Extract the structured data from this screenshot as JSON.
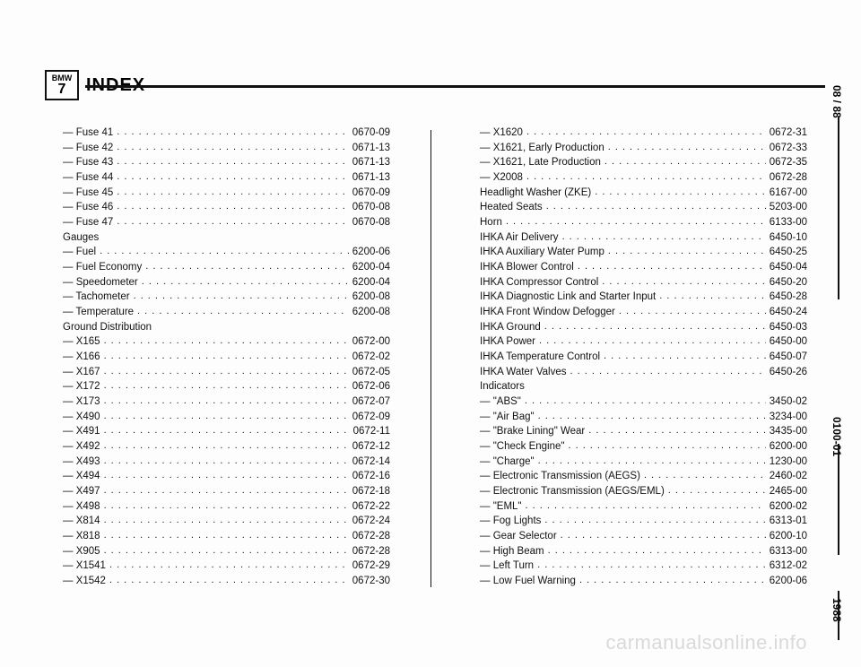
{
  "logo": {
    "brand": "BMW",
    "series": "7"
  },
  "title": "INDEX",
  "side": {
    "top": "08 / 88",
    "mid": "0100-01",
    "bot": "1988"
  },
  "watermark": "carmanualsonline.info",
  "left_col": [
    {
      "t": "e",
      "label": "—  Fuse 41",
      "num": "0670-09"
    },
    {
      "t": "e",
      "label": "—  Fuse 42",
      "num": "0671-13"
    },
    {
      "t": "e",
      "label": "—  Fuse 43",
      "num": "0671-13"
    },
    {
      "t": "e",
      "label": "—  Fuse 44",
      "num": "0671-13"
    },
    {
      "t": "e",
      "label": "—  Fuse 45",
      "num": "0670-09"
    },
    {
      "t": "e",
      "label": "—  Fuse 46",
      "num": "0670-08"
    },
    {
      "t": "e",
      "label": "—  Fuse 47",
      "num": "0670-08"
    },
    {
      "t": "h",
      "label": "Gauges"
    },
    {
      "t": "e",
      "label": "—  Fuel",
      "num": "6200-06"
    },
    {
      "t": "e",
      "label": "—  Fuel Economy",
      "num": "6200-04"
    },
    {
      "t": "e",
      "label": "—  Speedometer",
      "num": "6200-04"
    },
    {
      "t": "e",
      "label": "—  Tachometer",
      "num": "6200-08"
    },
    {
      "t": "e",
      "label": "—  Temperature",
      "num": "6200-08"
    },
    {
      "t": "h",
      "label": "Ground Distribution"
    },
    {
      "t": "e",
      "label": "—  X165",
      "num": "0672-00"
    },
    {
      "t": "e",
      "label": "—  X166",
      "num": "0672-02"
    },
    {
      "t": "e",
      "label": "—  X167",
      "num": "0672-05"
    },
    {
      "t": "e",
      "label": "—  X172",
      "num": "0672-06"
    },
    {
      "t": "e",
      "label": "—  X173",
      "num": "0672-07"
    },
    {
      "t": "e",
      "label": "—  X490",
      "num": "0672-09"
    },
    {
      "t": "e",
      "label": "—  X491",
      "num": "0672-11"
    },
    {
      "t": "e",
      "label": "—  X492",
      "num": "0672-12"
    },
    {
      "t": "e",
      "label": "—  X493",
      "num": "0672-14"
    },
    {
      "t": "e",
      "label": "—  X494",
      "num": "0672-16"
    },
    {
      "t": "e",
      "label": "—  X497",
      "num": "0672-18"
    },
    {
      "t": "e",
      "label": "—  X498",
      "num": "0672-22"
    },
    {
      "t": "e",
      "label": "—  X814",
      "num": "0672-24"
    },
    {
      "t": "e",
      "label": "—  X818",
      "num": "0672-28"
    },
    {
      "t": "e",
      "label": "—  X905",
      "num": "0672-28"
    },
    {
      "t": "e",
      "label": "—  X1541",
      "num": "0672-29"
    },
    {
      "t": "e",
      "label": "—  X1542",
      "num": "0672-30"
    }
  ],
  "right_col": [
    {
      "t": "e",
      "label": "—  X1620",
      "num": "0672-31"
    },
    {
      "t": "e",
      "label": "—  X1621, Early Production",
      "num": "0672-33"
    },
    {
      "t": "e",
      "label": "—  X1621, Late Production",
      "num": "0672-35"
    },
    {
      "t": "e",
      "label": "—  X2008",
      "num": "0672-28"
    },
    {
      "t": "e",
      "label": "Headlight Washer (ZKE)",
      "num": "6167-00"
    },
    {
      "t": "e",
      "label": "Heated Seats",
      "num": "5203-00"
    },
    {
      "t": "e",
      "label": "Horn",
      "num": "6133-00"
    },
    {
      "t": "e",
      "label": "IHKA Air Delivery",
      "num": "6450-10"
    },
    {
      "t": "e",
      "label": "IHKA Auxiliary Water Pump",
      "num": "6450-25"
    },
    {
      "t": "e",
      "label": "IHKA Blower Control",
      "num": "6450-04"
    },
    {
      "t": "e",
      "label": "IHKA Compressor Control",
      "num": "6450-20"
    },
    {
      "t": "e",
      "label": "IHKA Diagnostic Link and Starter Input",
      "num": "6450-28"
    },
    {
      "t": "e",
      "label": "IHKA Front Window Defogger",
      "num": "6450-24"
    },
    {
      "t": "e",
      "label": "IHKA Ground",
      "num": "6450-03"
    },
    {
      "t": "e",
      "label": "IHKA Power",
      "num": "6450-00"
    },
    {
      "t": "e",
      "label": "IHKA Temperature Control",
      "num": "6450-07"
    },
    {
      "t": "e",
      "label": "IHKA Water Valves",
      "num": "6450-26"
    },
    {
      "t": "h",
      "label": "Indicators"
    },
    {
      "t": "e",
      "label": "—  \"ABS\"",
      "num": "3450-02"
    },
    {
      "t": "e",
      "label": "—  \"Air Bag\"",
      "num": "3234-00"
    },
    {
      "t": "e",
      "label": "—  \"Brake Lining\" Wear",
      "num": "3435-00"
    },
    {
      "t": "e",
      "label": "—  \"Check Engine\"",
      "num": "6200-00"
    },
    {
      "t": "e",
      "label": "—  \"Charge\"",
      "num": "1230-00"
    },
    {
      "t": "e",
      "label": "—  Electronic Transmission (AEGS)",
      "num": "2460-02"
    },
    {
      "t": "e",
      "label": "—  Electronic Transmission (AEGS/EML)",
      "num": "2465-00"
    },
    {
      "t": "e",
      "label": "—  \"EML\"",
      "num": "6200-02"
    },
    {
      "t": "e",
      "label": "—  Fog Lights",
      "num": "6313-01"
    },
    {
      "t": "e",
      "label": "—  Gear Selector",
      "num": "6200-10"
    },
    {
      "t": "e",
      "label": "—  High Beam",
      "num": "6313-00"
    },
    {
      "t": "e",
      "label": "—  Left Turn",
      "num": "6312-02"
    },
    {
      "t": "e",
      "label": "—  Low Fuel Warning",
      "num": "6200-06"
    }
  ]
}
